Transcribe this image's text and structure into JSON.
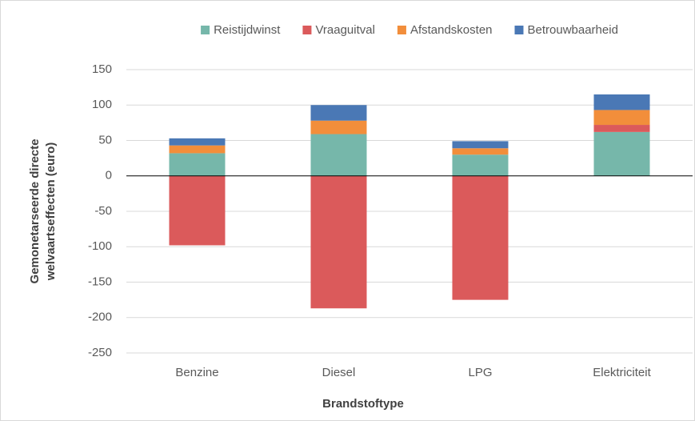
{
  "chart_data": {
    "type": "stacked_bar",
    "categories": [
      "Benzine",
      "Diesel",
      "LPG",
      "Elektriciteit"
    ],
    "series": [
      {
        "name": "Reistijdwinst",
        "color": "#76b7aa",
        "values": [
          32,
          59,
          30,
          62
        ]
      },
      {
        "name": "Vraaguitval",
        "color": "#db5a5b",
        "values": [
          -98,
          -187,
          -175,
          10
        ]
      },
      {
        "name": "Afstandskosten",
        "color": "#f28e3b",
        "values": [
          11,
          19,
          9,
          21
        ]
      },
      {
        "name": "Betrouwbaarheid",
        "color": "#4a78b5",
        "values": [
          10,
          22,
          10,
          22
        ]
      }
    ],
    "ylim": [
      -250,
      150
    ],
    "yticks": [
      -250,
      -200,
      -150,
      -100,
      -50,
      0,
      50,
      100,
      150
    ],
    "y_label": [
      "Gemonetarseerde directe",
      "welvaartseffecten (euro)"
    ],
    "x_label": "Brandstoftype",
    "grid": true,
    "legend": "top"
  }
}
